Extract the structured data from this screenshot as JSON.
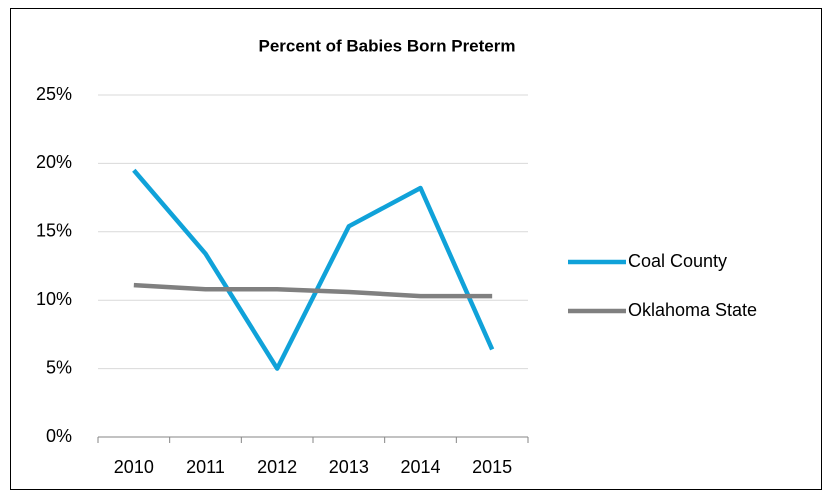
{
  "chart_data": {
    "type": "line",
    "title": "Percent of Babies Born Preterm",
    "categories": [
      "2010",
      "2011",
      "2012",
      "2013",
      "2014",
      "2015"
    ],
    "series": [
      {
        "name": "Coal County",
        "color": "#10a2d9",
        "values": [
          19.5,
          13.4,
          5.0,
          15.4,
          18.2,
          6.4
        ]
      },
      {
        "name": "Oklahoma State",
        "color": "#808080",
        "values": [
          11.1,
          10.8,
          10.8,
          10.6,
          10.3,
          10.3
        ]
      }
    ],
    "ylim": [
      0,
      25
    ],
    "yticks": [
      {
        "value": 0,
        "label": "0%"
      },
      {
        "value": 5,
        "label": "5%"
      },
      {
        "value": 10,
        "label": "10%"
      },
      {
        "value": 15,
        "label": "15%"
      },
      {
        "value": 20,
        "label": "20%"
      },
      {
        "value": 25,
        "label": "25%"
      }
    ],
    "grid": true,
    "legend": "right"
  }
}
